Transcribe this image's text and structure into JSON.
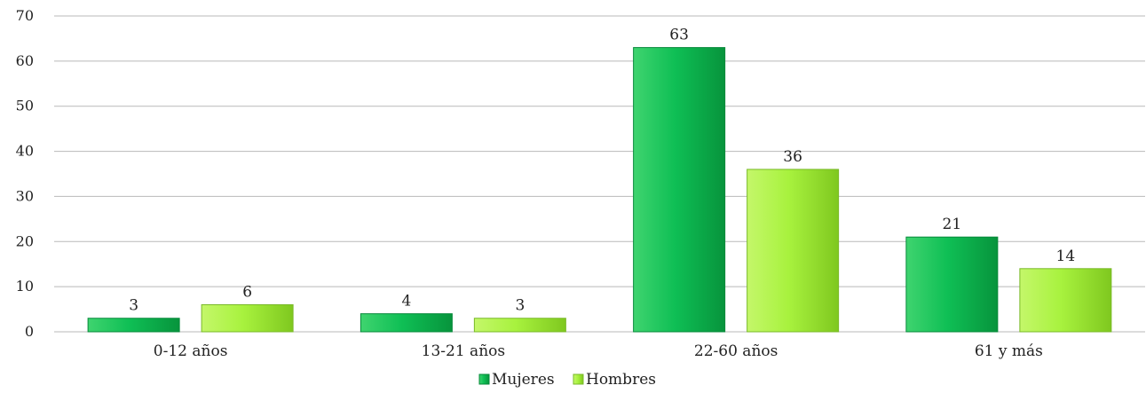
{
  "chart_data": {
    "type": "bar",
    "categories": [
      "0-12 años",
      "13-21 años",
      "22-60 años",
      "61 y más"
    ],
    "series": [
      {
        "name": "Mujeres",
        "values": [
          3,
          4,
          63,
          21
        ],
        "color": "#0cb850"
      },
      {
        "name": "Hombres",
        "values": [
          6,
          3,
          36,
          14
        ],
        "color": "#a4f03c"
      }
    ],
    "yticks": [
      0,
      10,
      20,
      30,
      40,
      50,
      60,
      70
    ],
    "ylim": [
      0,
      70
    ],
    "grid": true,
    "legend_position": "bottom-center"
  }
}
